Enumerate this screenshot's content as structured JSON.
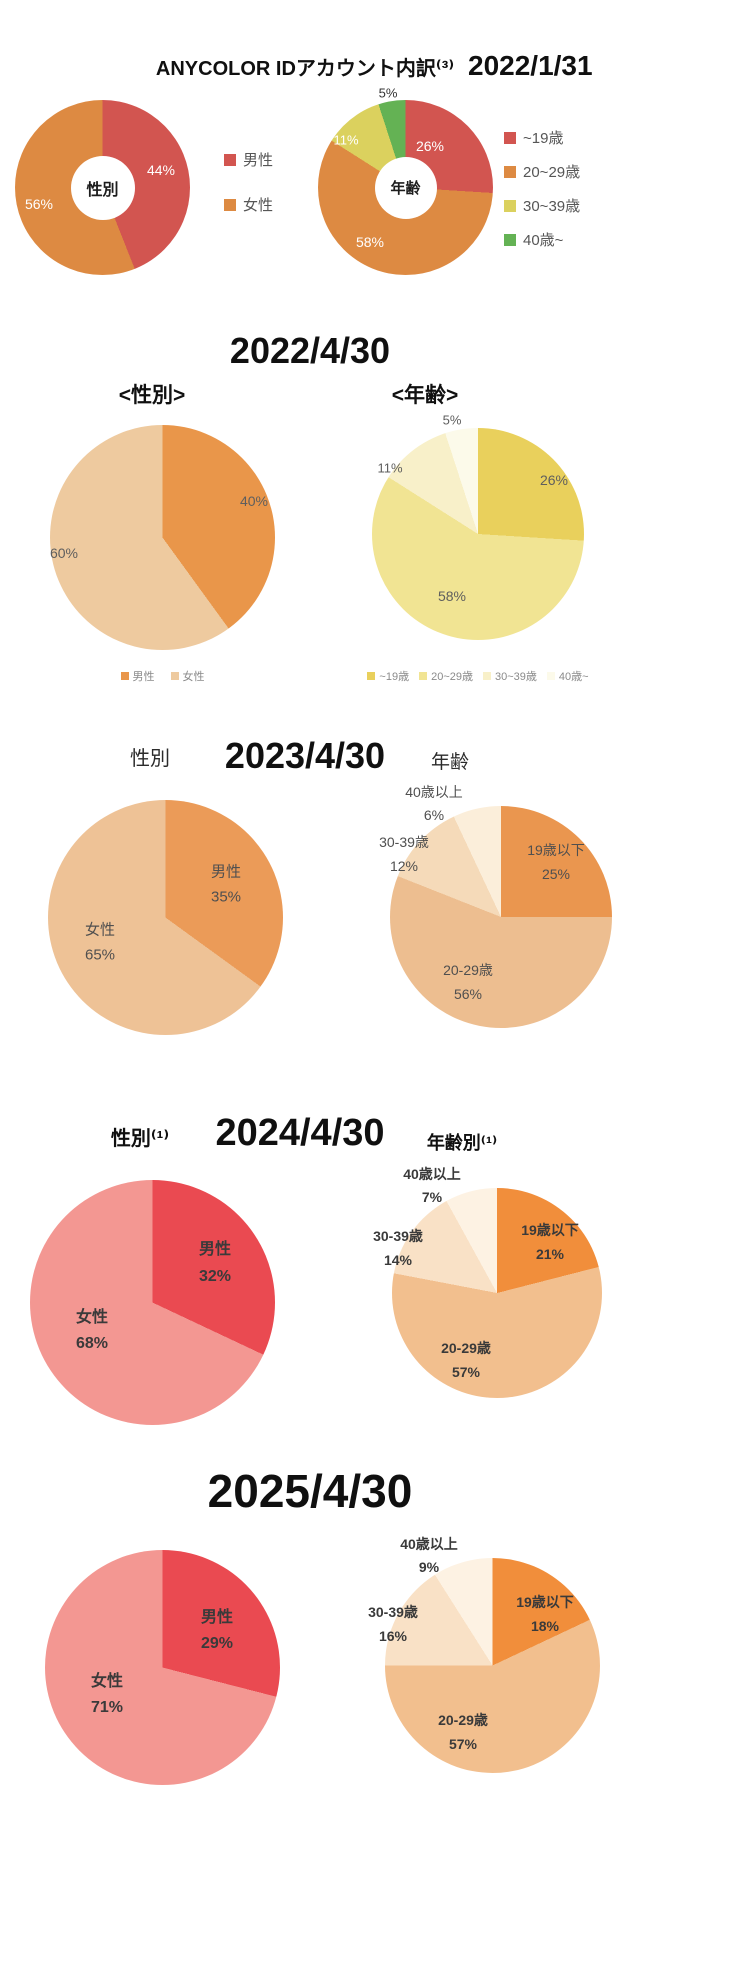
{
  "header": {
    "title": "ANYCOLOR IDアカウント内訳⁽³⁾",
    "date": "2022/1/31"
  },
  "sections": {
    "s2022_04": {
      "title": "2022/4/30",
      "gender_heading": "<性別>",
      "age_heading": "<年齢>"
    },
    "s2023": {
      "title": "2023/4/30",
      "gender_heading": "性別",
      "age_heading": "年齢"
    },
    "s2024": {
      "title": "2024/4/30",
      "gender_heading": "性別⁽¹⁾",
      "age_heading": "年齢別⁽¹⁾"
    },
    "s2025": {
      "title": "2025/4/30"
    }
  },
  "chart_data": [
    {
      "id": "gender-2022-01-31",
      "type": "donut",
      "date": "2022/1/31",
      "title": "性別",
      "center_label": "性別",
      "legend_position": "right",
      "slices": [
        {
          "label": "男性",
          "value": 44,
          "display": "44%",
          "color": "#d25550"
        },
        {
          "label": "女性",
          "value": 56,
          "display": "56%",
          "color": "#dd8a42"
        }
      ]
    },
    {
      "id": "age-2022-01-31",
      "type": "donut",
      "date": "2022/1/31",
      "title": "年齢",
      "center_label": "年齢",
      "legend_position": "right",
      "slices": [
        {
          "label": "~19歳",
          "value": 26,
          "display": "26%",
          "color": "#d25550"
        },
        {
          "label": "20~29歳",
          "value": 58,
          "display": "58%",
          "color": "#dd8a42"
        },
        {
          "label": "30~39歳",
          "value": 11,
          "display": "11%",
          "color": "#dbd15e"
        },
        {
          "label": "40歳~",
          "value": 5,
          "display": "5%",
          "color": "#64b254"
        }
      ]
    },
    {
      "id": "gender-2022-04-30",
      "type": "pie",
      "date": "2022/4/30",
      "title": "<性別>",
      "legend_position": "bottom",
      "slices": [
        {
          "label": "男性",
          "value": 40,
          "display": "40%",
          "color": "#e9964a"
        },
        {
          "label": "女性",
          "value": 60,
          "display": "60%",
          "color": "#eeca9f"
        }
      ]
    },
    {
      "id": "age-2022-04-30",
      "type": "pie",
      "date": "2022/4/30",
      "title": "<年齢>",
      "legend_position": "bottom",
      "slices": [
        {
          "label": "~19歳",
          "value": 26,
          "display": "26%",
          "color": "#e9d05c"
        },
        {
          "label": "20~29歳",
          "value": 58,
          "display": "58%",
          "color": "#f1e493"
        },
        {
          "label": "30~39歳",
          "value": 11,
          "display": "11%",
          "color": "#f8f0c9"
        },
        {
          "label": "40歳~",
          "value": 5,
          "display": "5%",
          "color": "#fcfaea"
        }
      ]
    },
    {
      "id": "gender-2023-04-30",
      "type": "pie",
      "date": "2023/4/30",
      "title": "性別",
      "slices": [
        {
          "label": "男性",
          "value": 35,
          "display": "35%",
          "color": "#eb9b58"
        },
        {
          "label": "女性",
          "value": 65,
          "display": "65%",
          "color": "#eec296"
        }
      ]
    },
    {
      "id": "age-2023-04-30",
      "type": "pie",
      "date": "2023/4/30",
      "title": "年齢",
      "slices": [
        {
          "label": "19歳以下",
          "value": 25,
          "display": "25%",
          "color": "#ea964f"
        },
        {
          "label": "20-29歳",
          "value": 56,
          "display": "56%",
          "color": "#edbe90"
        },
        {
          "label": "30-39歳",
          "value": 12,
          "display": "12%",
          "color": "#f5dab9"
        },
        {
          "label": "40歳以上",
          "value": 6,
          "display": "6%",
          "color": "#fbeeda"
        }
      ]
    },
    {
      "id": "gender-2024-04-30",
      "type": "pie",
      "date": "2024/4/30",
      "title": "性別⁽¹⁾",
      "slices": [
        {
          "label": "男性",
          "value": 32,
          "display": "32%",
          "color": "#ea4a51"
        },
        {
          "label": "女性",
          "value": 68,
          "display": "68%",
          "color": "#f39792"
        }
      ]
    },
    {
      "id": "age-2024-04-30",
      "type": "pie",
      "date": "2024/4/30",
      "title": "年齢別⁽¹⁾",
      "slices": [
        {
          "label": "19歳以下",
          "value": 21,
          "display": "21%",
          "color": "#f18e3b"
        },
        {
          "label": "20-29歳",
          "value": 57,
          "display": "57%",
          "color": "#f2bf8e"
        },
        {
          "label": "30-39歳",
          "value": 14,
          "display": "14%",
          "color": "#f9e1c6"
        },
        {
          "label": "40歳以上",
          "value": 7,
          "display": "7%",
          "color": "#fdf2e3"
        }
      ]
    },
    {
      "id": "gender-2025-04-30",
      "type": "pie",
      "date": "2025/4/30",
      "slices": [
        {
          "label": "男性",
          "value": 29,
          "display": "29%",
          "color": "#ea4a51"
        },
        {
          "label": "女性",
          "value": 71,
          "display": "71%",
          "color": "#f39792"
        }
      ]
    },
    {
      "id": "age-2025-04-30",
      "type": "pie",
      "date": "2025/4/30",
      "slices": [
        {
          "label": "19歳以下",
          "value": 18,
          "display": "18%",
          "color": "#f18e3b"
        },
        {
          "label": "20-29歳",
          "value": 57,
          "display": "57%",
          "color": "#f2bf8e"
        },
        {
          "label": "30-39歳",
          "value": 16,
          "display": "16%",
          "color": "#f9e1c6"
        },
        {
          "label": "40歳以上",
          "value": 9,
          "display": "9%",
          "color": "#fdf2e3"
        }
      ]
    }
  ]
}
